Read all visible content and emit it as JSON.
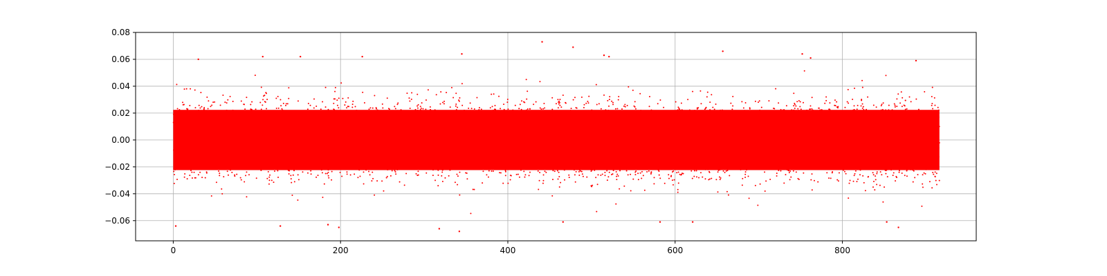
{
  "chart_data": {
    "type": "scatter",
    "title": "",
    "xlabel": "",
    "ylabel": "",
    "xlim": [
      -45,
      960
    ],
    "ylim": [
      -0.075,
      0.08
    ],
    "grid": true,
    "marker_color": "#ff0000",
    "x_ticks": [
      {
        "value": 0,
        "label": "0"
      },
      {
        "value": 200,
        "label": "200"
      },
      {
        "value": 400,
        "label": "400"
      },
      {
        "value": 600,
        "label": "600"
      },
      {
        "value": 800,
        "label": "800"
      }
    ],
    "y_ticks": [
      {
        "value": -0.06,
        "label": "−0.06"
      },
      {
        "value": -0.04,
        "label": "−0.04"
      },
      {
        "value": -0.02,
        "label": "−0.02"
      },
      {
        "value": 0.0,
        "label": "0.00"
      },
      {
        "value": 0.02,
        "label": "0.02"
      },
      {
        "value": 0.04,
        "label": "0.04"
      },
      {
        "value": 0.06,
        "label": "0.06"
      },
      {
        "value": 0.08,
        "label": "0.08"
      }
    ],
    "series": [
      {
        "x_range": [
          0,
          916
        ],
        "dense_band": [
          -0.02,
          0.02
        ],
        "outliers": [
          {
            "x": 441,
            "y": 0.073
          },
          {
            "x": 478,
            "y": 0.069
          },
          {
            "x": 657,
            "y": 0.066
          },
          {
            "x": 345,
            "y": 0.064
          },
          {
            "x": 515,
            "y": 0.063
          },
          {
            "x": 752,
            "y": 0.064
          },
          {
            "x": 30,
            "y": 0.06
          },
          {
            "x": 107,
            "y": 0.062
          },
          {
            "x": 152,
            "y": 0.062
          },
          {
            "x": 226,
            "y": 0.062
          },
          {
            "x": 521,
            "y": 0.062
          },
          {
            "x": 762,
            "y": 0.061
          },
          {
            "x": 888,
            "y": 0.059
          },
          {
            "x": 3,
            "y": -0.064
          },
          {
            "x": 128,
            "y": -0.064
          },
          {
            "x": 185,
            "y": -0.063
          },
          {
            "x": 198,
            "y": -0.065
          },
          {
            "x": 318,
            "y": -0.066
          },
          {
            "x": 342,
            "y": -0.068
          },
          {
            "x": 466,
            "y": -0.061
          },
          {
            "x": 582,
            "y": -0.061
          },
          {
            "x": 621,
            "y": -0.061
          },
          {
            "x": 853,
            "y": -0.061
          },
          {
            "x": 867,
            "y": -0.065
          }
        ]
      }
    ]
  }
}
